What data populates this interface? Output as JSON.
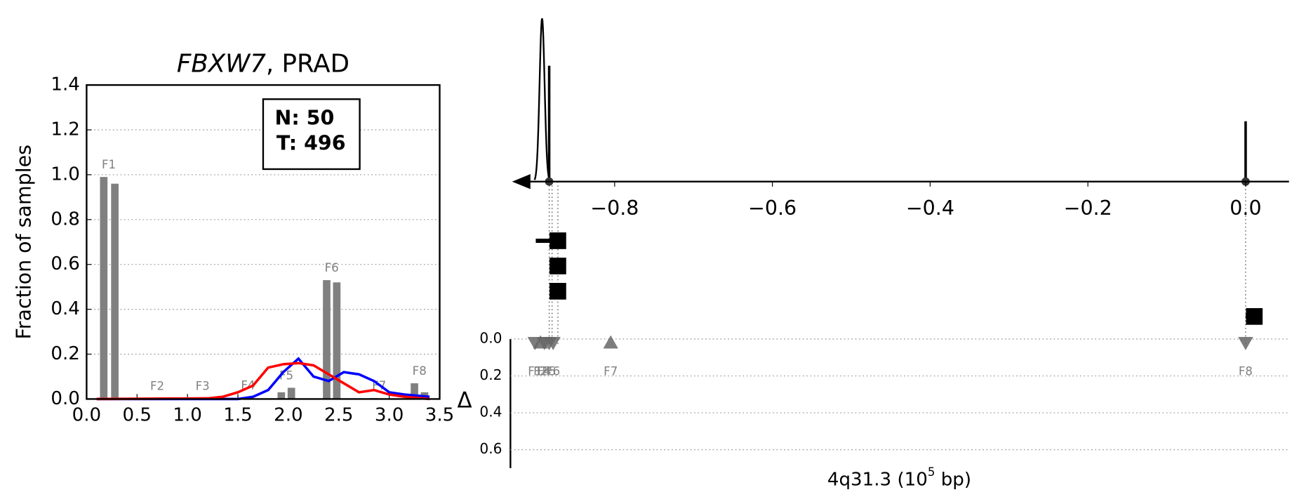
{
  "chart_data": [
    {
      "type": "bar",
      "title": [
        "FBXW7",
        ", PRAD"
      ],
      "ylabel": "Fraction of samples",
      "xlim": [
        0,
        3.5
      ],
      "xticks": [
        {
          "value": 0,
          "label": "0.0"
        },
        0.5,
        {
          "value": 1,
          "label": "1.0"
        },
        1.5,
        {
          "value": 2,
          "label": "2.0"
        },
        2.5,
        {
          "value": 3,
          "label": "3.0"
        },
        3.5
      ],
      "ylim": [
        0,
        1.4
      ],
      "yticks": [
        {
          "value": 0,
          "label": "0.0"
        },
        0.2,
        0.4,
        0.6,
        0.8,
        {
          "value": 1,
          "label": "1.0"
        },
        1.2,
        1.4
      ],
      "grid": true,
      "annotation": [
        "N: 50",
        "T: 496"
      ],
      "bars": {
        "color": "#808080",
        "x": [
          0.17,
          0.28,
          0.65,
          0.75,
          1.1,
          1.2,
          1.55,
          1.65,
          1.93,
          2.03,
          2.38,
          2.48,
          2.85,
          2.95,
          3.25,
          3.35
        ],
        "values": [
          0.99,
          0.96,
          0.003,
          0.002,
          0.003,
          0.002,
          0.005,
          0.003,
          0.03,
          0.05,
          0.53,
          0.52,
          0.004,
          0.003,
          0.07,
          0.03
        ]
      },
      "families": {
        "labels": [
          "F1",
          "F2",
          "F3",
          "F4",
          "F5",
          "F6",
          "F7",
          "F8"
        ],
        "x": [
          0.22,
          0.7,
          1.15,
          1.6,
          1.98,
          2.43,
          2.9,
          3.3
        ]
      },
      "series": [
        {
          "color": "#0000ff",
          "x": [
            0.1,
            1.5,
            1.65,
            1.8,
            1.95,
            2.1,
            2.25,
            2.4,
            2.55,
            2.7,
            2.85,
            3.0,
            3.15,
            3.4
          ],
          "values": [
            0,
            0,
            0.01,
            0.04,
            0.12,
            0.18,
            0.1,
            0.08,
            0.12,
            0.11,
            0.08,
            0.03,
            0.02,
            0.01
          ]
        },
        {
          "color": "#ff0000",
          "x": [
            0.1,
            1.2,
            1.35,
            1.5,
            1.65,
            1.8,
            1.95,
            2.1,
            2.25,
            2.4,
            2.55,
            2.7,
            2.85,
            3.0,
            3.15,
            3.4
          ],
          "values": [
            0,
            0.003,
            0.01,
            0.03,
            0.06,
            0.14,
            0.155,
            0.16,
            0.15,
            0.11,
            0.07,
            0.03,
            0.04,
            0.02,
            0.01,
            0
          ]
        }
      ]
    },
    {
      "type": "genome",
      "xlabel": [
        "4q31.3 (10",
        "5",
        " bp)"
      ],
      "xlim": [
        -0.93,
        0.055
      ],
      "xticks": [
        {
          "value": -0.8,
          "label": "−0.8"
        },
        {
          "value": -0.6,
          "label": "−0.6"
        },
        {
          "value": -0.4,
          "label": "−0.4"
        },
        {
          "value": -0.2,
          "label": "−0.2"
        },
        {
          "value": 0,
          "label": "0.0"
        }
      ],
      "peaks": {
        "x": [
          -0.892,
          -0.883,
          0.0
        ],
        "values": [
          1.0,
          0.71,
          0.37
        ]
      },
      "squares": {
        "x": [
          -0.872,
          -0.872,
          -0.872,
          0.011
        ],
        "xerr_low": [
          -0.9,
          -0.88,
          -0.88,
          0.0
        ]
      },
      "ylabel": "Δ",
      "ylim": [
        0,
        0.7
      ],
      "yticks": [
        {
          "value": 0,
          "label": "0.0"
        },
        0.2,
        0.4,
        0.6
      ],
      "grid": true,
      "deltas": {
        "labels": [
          "F1",
          "F2",
          "F4",
          "F5",
          "F6",
          "F7",
          "F8"
        ],
        "x": [
          -0.901,
          -0.894,
          -0.889,
          -0.883,
          -0.878,
          -0.805,
          0.0
        ],
        "values": [
          0.02,
          0.02,
          0.02,
          0.02,
          0.02,
          0.02,
          0.02
        ],
        "direction": [
          "down",
          "up",
          "down",
          "down",
          "down",
          "up",
          "down"
        ],
        "color": "#666666"
      }
    }
  ]
}
